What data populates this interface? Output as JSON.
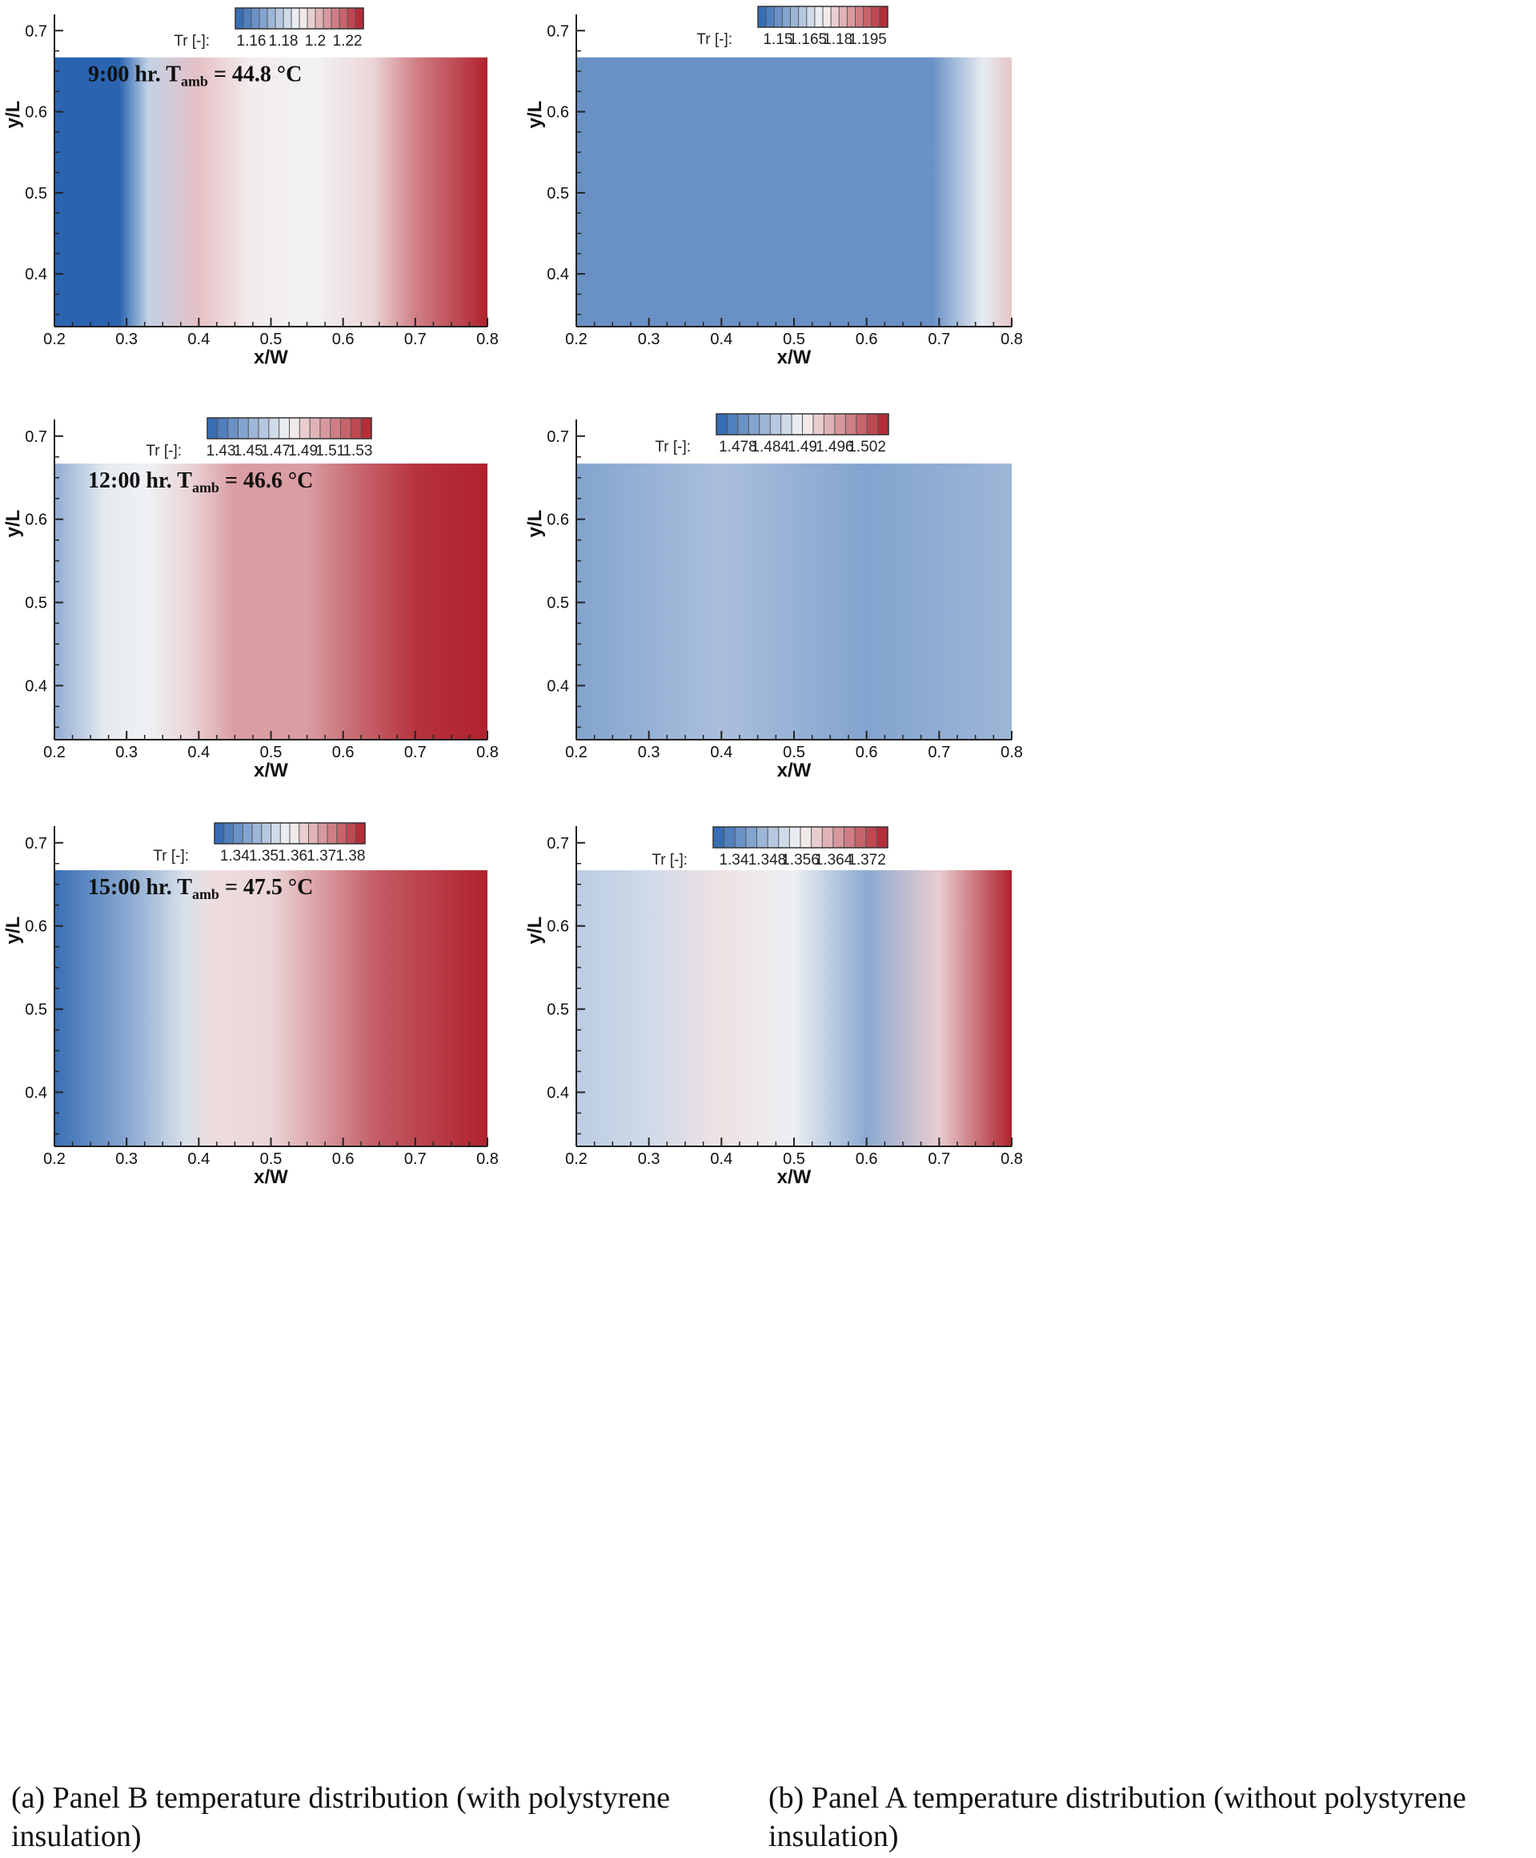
{
  "colors": {
    "blue": "#2a64b0",
    "white": "#f6f6f6",
    "red": "#b0212d",
    "axis": "#222222"
  },
  "chart_data": [
    {
      "type": "heatmap",
      "id": "a1",
      "xlabel": "x/W",
      "ylabel": "y/L",
      "xlim": [
        0.2,
        0.8
      ],
      "ylim": [
        0.335,
        0.72
      ],
      "data_top": 0.667,
      "xticks": [
        "0.2",
        "0.3",
        "0.4",
        "0.5",
        "0.6",
        "0.7",
        "0.8"
      ],
      "yticks": [
        "0.4",
        "0.5",
        "0.6",
        "0.7"
      ],
      "colorbar": {
        "label": "Tr [-]:",
        "ticks": [
          "1.16",
          "1.18",
          "1.2",
          "1.22"
        ],
        "range": [
          1.15,
          1.23
        ]
      },
      "annotation": {
        "prefix": "9:00 hr. T",
        "sub": "amb",
        "suffix": " = 44.8 °C"
      },
      "field_profile": [
        [
          0.2,
          1.15
        ],
        [
          0.29,
          1.15
        ],
        [
          0.33,
          1.18
        ],
        [
          0.4,
          1.2
        ],
        [
          0.47,
          1.192
        ],
        [
          0.56,
          1.189
        ],
        [
          0.64,
          1.196
        ],
        [
          0.7,
          1.212
        ],
        [
          0.8,
          1.23
        ]
      ]
    },
    {
      "type": "heatmap",
      "id": "b1",
      "xlabel": "x/W",
      "ylabel": "y/L",
      "xlim": [
        0.2,
        0.8
      ],
      "ylim": [
        0.335,
        0.72
      ],
      "data_top": 0.667,
      "xticks": [
        "0.2",
        "0.3",
        "0.4",
        "0.5",
        "0.6",
        "0.7",
        "0.8"
      ],
      "yticks": [
        "0.4",
        "0.5",
        "0.6",
        "0.7"
      ],
      "colorbar": {
        "label": "Tr [-]:",
        "ticks": [
          "1.15",
          "1.165",
          "1.18",
          "1.195"
        ],
        "range": [
          1.14,
          1.205
        ]
      },
      "annotation": null,
      "field_profile": [
        [
          0.2,
          1.15
        ],
        [
          0.69,
          1.15
        ],
        [
          0.76,
          1.17
        ],
        [
          0.8,
          1.18
        ]
      ]
    },
    {
      "type": "heatmap",
      "id": "a2",
      "xlabel": "x/W",
      "ylabel": "y/L",
      "xlim": [
        0.2,
        0.8
      ],
      "ylim": [
        0.335,
        0.72
      ],
      "data_top": 0.667,
      "xticks": [
        "0.2",
        "0.3",
        "0.4",
        "0.5",
        "0.6",
        "0.7",
        "0.8"
      ],
      "yticks": [
        "0.4",
        "0.5",
        "0.6",
        "0.7"
      ],
      "colorbar": {
        "label": "Tr [-]:",
        "ticks": [
          "1.43",
          "1.45",
          "1.47",
          "1.49",
          "1.51",
          "1.53"
        ],
        "range": [
          1.42,
          1.54
        ]
      },
      "annotation": {
        "prefix": "12:00 hr. T",
        "sub": "amb",
        "suffix": " = 46.6 °C"
      },
      "field_profile": [
        [
          0.2,
          1.45
        ],
        [
          0.27,
          1.475
        ],
        [
          0.33,
          1.478
        ],
        [
          0.39,
          1.49
        ],
        [
          0.45,
          1.505
        ],
        [
          0.55,
          1.505
        ],
        [
          0.62,
          1.52
        ],
        [
          0.7,
          1.535
        ],
        [
          0.8,
          1.54
        ]
      ]
    },
    {
      "type": "heatmap",
      "id": "b2",
      "xlabel": "x/W",
      "ylabel": "y/L",
      "xlim": [
        0.2,
        0.8
      ],
      "ylim": [
        0.335,
        0.72
      ],
      "data_top": 0.667,
      "xticks": [
        "0.2",
        "0.3",
        "0.4",
        "0.5",
        "0.6",
        "0.7",
        "0.8"
      ],
      "yticks": [
        "0.4",
        "0.5",
        "0.6",
        "0.7"
      ],
      "colorbar": {
        "label": "Tr [-]:",
        "ticks": [
          "1.478",
          "1.484",
          "1.49",
          "1.496",
          "1.502"
        ],
        "range": [
          1.474,
          1.506
        ]
      },
      "annotation": null,
      "field_profile": [
        [
          0.2,
          1.481
        ],
        [
          0.4,
          1.484
        ],
        [
          0.6,
          1.481
        ],
        [
          0.8,
          1.483
        ]
      ]
    },
    {
      "type": "heatmap",
      "id": "a3",
      "xlabel": "x/W",
      "ylabel": "y/L",
      "xlim": [
        0.2,
        0.8
      ],
      "ylim": [
        0.335,
        0.72
      ],
      "data_top": 0.667,
      "xticks": [
        "0.2",
        "0.3",
        "0.4",
        "0.5",
        "0.6",
        "0.7",
        "0.8"
      ],
      "yticks": [
        "0.4",
        "0.5",
        "0.6",
        "0.7"
      ],
      "colorbar": {
        "label": "Tr [-]:",
        "ticks": [
          "1.34",
          "1.35",
          "1.36",
          "1.37",
          "1.38"
        ],
        "range": [
          1.333,
          1.385
        ]
      },
      "annotation": {
        "prefix": "15:00 hr. T",
        "sub": "amb",
        "suffix": " = 47.5 °C"
      },
      "field_profile": [
        [
          0.2,
          1.335
        ],
        [
          0.3,
          1.345
        ],
        [
          0.38,
          1.355
        ],
        [
          0.42,
          1.362
        ],
        [
          0.5,
          1.363
        ],
        [
          0.57,
          1.37
        ],
        [
          0.65,
          1.378
        ],
        [
          0.8,
          1.385
        ]
      ]
    },
    {
      "type": "heatmap",
      "id": "b3",
      "xlabel": "x/W",
      "ylabel": "y/L",
      "xlim": [
        0.2,
        0.8
      ],
      "ylim": [
        0.335,
        0.72
      ],
      "data_top": 0.667,
      "xticks": [
        "0.2",
        "0.3",
        "0.4",
        "0.5",
        "0.6",
        "0.7",
        "0.8"
      ],
      "yticks": [
        "0.4",
        "0.5",
        "0.6",
        "0.7"
      ],
      "colorbar": {
        "label": "Tr [-]:",
        "ticks": [
          "1.34",
          "1.348",
          "1.356",
          "1.364",
          "1.372"
        ],
        "range": [
          1.335,
          1.377
        ]
      },
      "annotation": null,
      "field_profile": [
        [
          0.2,
          1.35
        ],
        [
          0.3,
          1.352
        ],
        [
          0.4,
          1.358
        ],
        [
          0.5,
          1.355
        ],
        [
          0.6,
          1.345
        ],
        [
          0.7,
          1.36
        ],
        [
          0.8,
          1.377
        ]
      ]
    }
  ],
  "captions": {
    "a": "(a) Panel B temperature distribution (with polystyrene insulation)",
    "b": "(b) Panel A temperature distribution (without polystyrene insulation)"
  }
}
